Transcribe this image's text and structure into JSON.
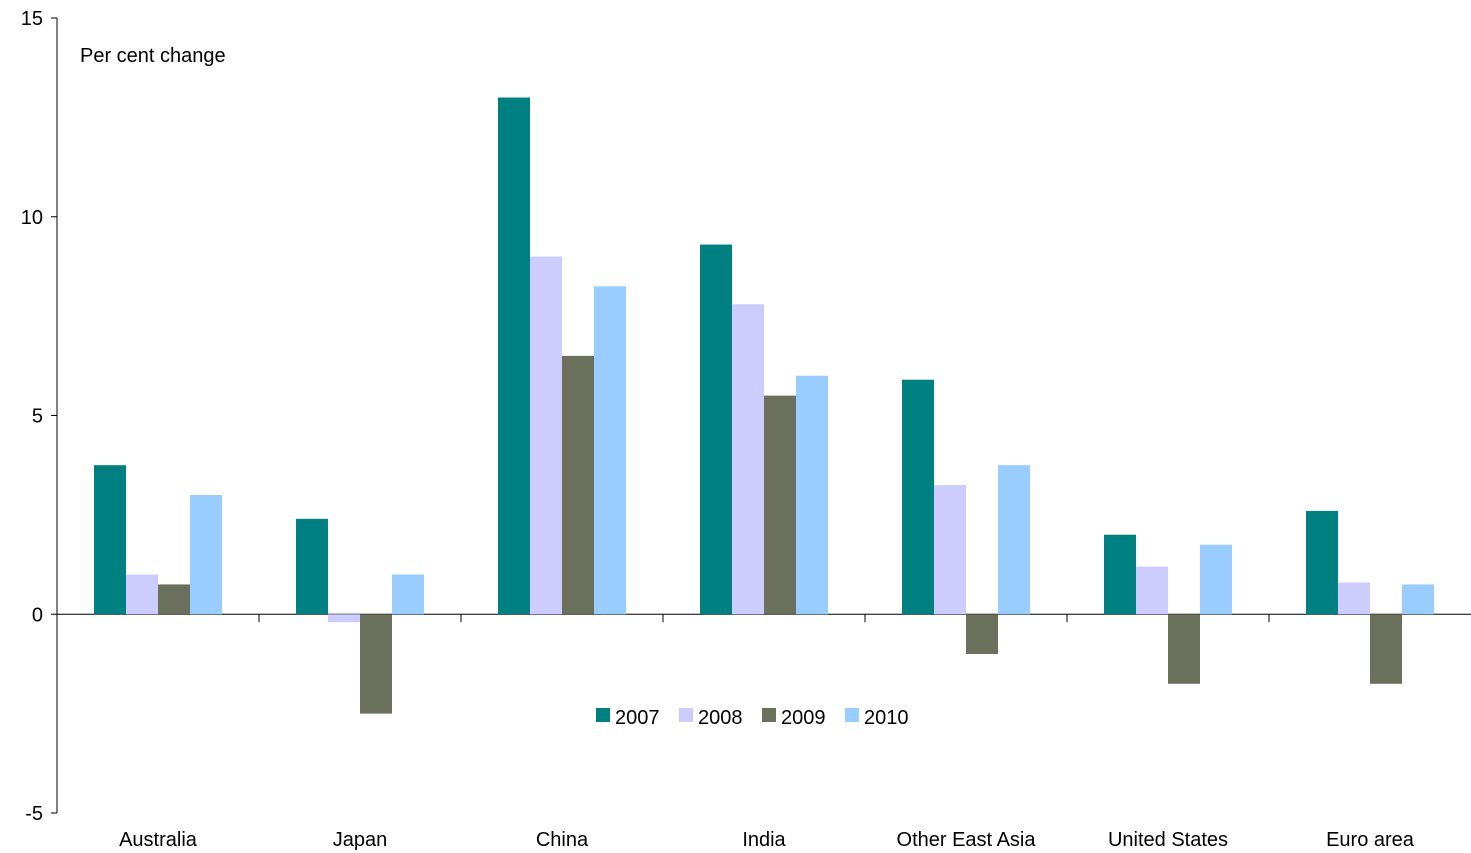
{
  "chart_data": {
    "type": "bar",
    "ylabel": "Per cent change",
    "ylim": [
      -5,
      15
    ],
    "yticks": [
      -5,
      0,
      5,
      10,
      15
    ],
    "grid": false,
    "legend_position": "bottom-center-inside",
    "categories": [
      "Australia",
      "Japan",
      "China",
      "India",
      "Other East Asia",
      "United States",
      "Euro area"
    ],
    "series": [
      {
        "name": "2007",
        "color": "#008080",
        "values": [
          3.75,
          2.4,
          13.0,
          9.3,
          5.9,
          2.0,
          2.6
        ]
      },
      {
        "name": "2008",
        "color": "#CCCCFF",
        "values": [
          1.0,
          -0.2,
          9.0,
          7.8,
          3.25,
          1.2,
          0.8
        ]
      },
      {
        "name": "2009",
        "color": "#6B705C",
        "values": [
          0.75,
          -2.5,
          6.5,
          5.5,
          -1.0,
          -1.75,
          -1.75
        ]
      },
      {
        "name": "2010",
        "color": "#99CCFF",
        "values": [
          3.0,
          1.0,
          8.25,
          6.0,
          3.75,
          1.75,
          0.75
        ]
      }
    ]
  }
}
